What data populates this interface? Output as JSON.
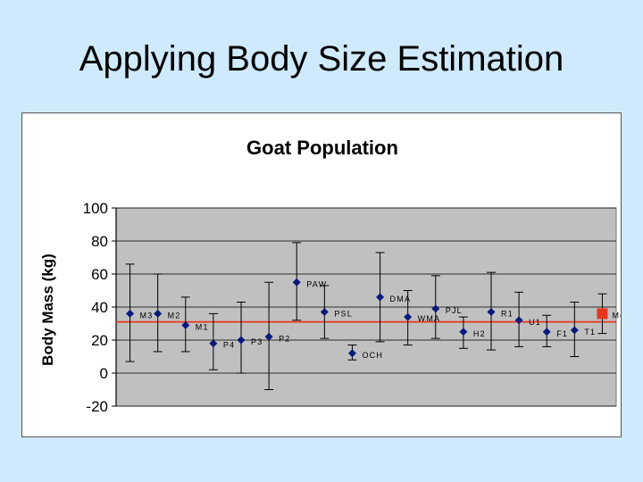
{
  "slide": {
    "title": "Applying Body Size Estimation"
  },
  "chart_data": {
    "type": "scatter",
    "title": "Goat Population",
    "xlabel": "",
    "ylabel": "Body Mass (kg)",
    "ylim": [
      -20,
      100
    ],
    "yticks": [
      100,
      80,
      60,
      40,
      20,
      0,
      -20
    ],
    "grid": true,
    "series": [
      {
        "points": [
          {
            "label": "M3",
            "y": 36,
            "low": 7,
            "high": 66
          },
          {
            "label": "M2",
            "y": 36,
            "low": 13,
            "high": 60
          },
          {
            "label": "M1",
            "y": 29,
            "low": 13,
            "high": 46
          },
          {
            "label": "P4",
            "y": 18,
            "low": 2,
            "high": 36
          },
          {
            "label": "P3",
            "y": 20,
            "low": 0,
            "high": 43
          },
          {
            "label": "P2",
            "y": 22,
            "low": -10,
            "high": 55
          },
          {
            "label": "PAW",
            "y": 55,
            "low": 32,
            "high": 79
          },
          {
            "label": "PSL",
            "y": 37,
            "low": 21,
            "high": 53
          },
          {
            "label": "OCH",
            "y": 12,
            "low": 8,
            "high": 17
          },
          {
            "label": "DMA",
            "y": 46,
            "low": 19,
            "high": 73
          },
          {
            "label": "WMA",
            "y": 34,
            "low": 17,
            "high": 50
          },
          {
            "label": "PJL",
            "y": 39,
            "low": 21,
            "high": 59
          },
          {
            "label": "H2",
            "y": 25,
            "low": 15,
            "high": 34
          },
          {
            "label": "R1",
            "y": 37,
            "low": 14,
            "high": 61
          },
          {
            "label": "U1",
            "y": 32,
            "low": 16,
            "high": 49
          },
          {
            "label": "F1",
            "y": 25,
            "low": 16,
            "high": 35
          },
          {
            "label": "T1",
            "y": 26,
            "low": 10,
            "high": 43
          }
        ]
      },
      {
        "points": [
          {
            "label": "Mean All",
            "y": 36,
            "low": 24,
            "high": 48
          }
        ]
      }
    ],
    "reference_line": {
      "y": 31
    },
    "colors": {
      "marker": "#0a1a7a",
      "mean_marker": "#e8351e",
      "reference_line": "#e8351e",
      "plot_bg": "#c0c0c0",
      "slide_bg": "#cfeafc"
    }
  }
}
